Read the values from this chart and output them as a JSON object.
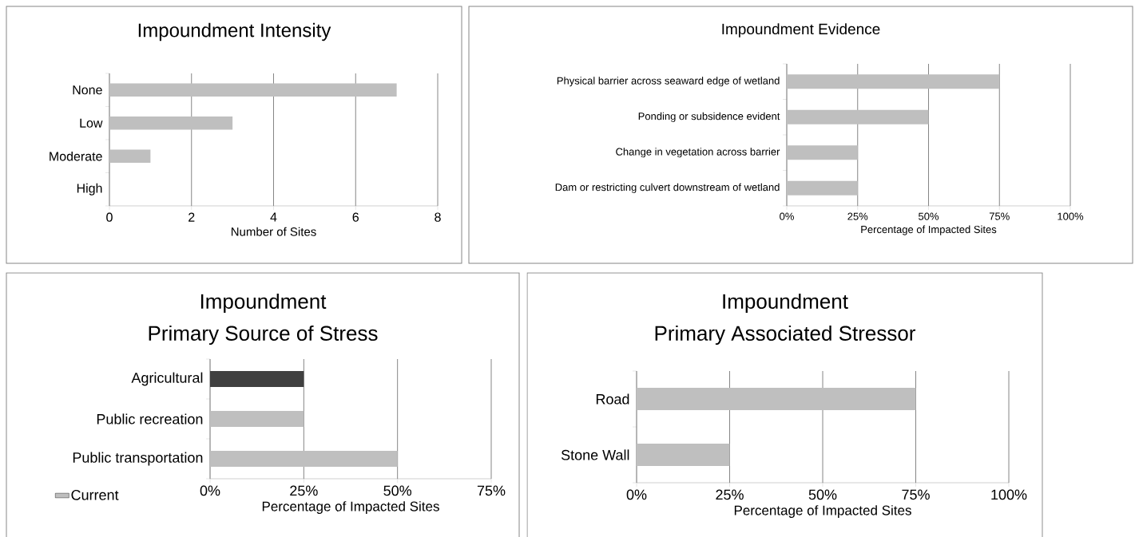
{
  "chart_data": [
    {
      "type": "bar",
      "orientation": "horizontal",
      "title": "Impoundment Intensity",
      "xlabel": "Number of Sites",
      "categories": [
        "None",
        "Low",
        "Moderate",
        "High"
      ],
      "series": [
        {
          "color": "#bfbfbf",
          "values": [
            7,
            3,
            1,
            0
          ]
        }
      ],
      "xlim": [
        0,
        8
      ],
      "xticks": [
        0,
        2,
        4,
        6,
        8
      ],
      "grid": "x"
    },
    {
      "type": "bar",
      "orientation": "horizontal",
      "title": "Impoundment Evidence",
      "xlabel": "Percentage of Impacted Sites",
      "categories": [
        "Physical barrier across seaward edge of wetland",
        "Ponding or subsidence evident",
        "Change in  vegetation across barrier",
        "Dam or restricting culvert downstream of wetland"
      ],
      "series": [
        {
          "color": "#bfbfbf",
          "values": [
            75,
            50,
            25,
            25
          ]
        }
      ],
      "xlim": [
        0,
        100
      ],
      "xticks": [
        {
          "value": 0,
          "label": "0%"
        },
        {
          "value": 25,
          "label": "25%"
        },
        {
          "value": 50,
          "label": "50%"
        },
        {
          "value": 75,
          "label": "75%"
        },
        {
          "value": 100,
          "label": "100%"
        }
      ],
      "grid": "x"
    },
    {
      "type": "bar",
      "orientation": "horizontal",
      "title": "Impoundment",
      "subtitle": "Primary Source of Stress",
      "xlabel": "Percentage of Impacted Sites",
      "categories": [
        "Agricultural",
        "Public recreation",
        "Public transportation"
      ],
      "series": [
        {
          "name": "Current",
          "color": "#bfbfbf",
          "colors": [
            "#404040",
            "#bfbfbf",
            "#bfbfbf"
          ],
          "values": [
            25,
            25,
            50
          ]
        }
      ],
      "xlim": [
        0,
        75
      ],
      "xticks": [
        {
          "value": 0,
          "label": "0%"
        },
        {
          "value": 25,
          "label": "25%"
        },
        {
          "value": 50,
          "label": "50%"
        },
        {
          "value": 75,
          "label": "75%"
        }
      ],
      "grid": "x",
      "legend": "bottom left"
    },
    {
      "type": "bar",
      "orientation": "horizontal",
      "title": "Impoundment",
      "subtitle": "Primary Associated Stressor",
      "xlabel": "Percentage of Impacted Sites",
      "categories": [
        "Road",
        "Stone Wall"
      ],
      "series": [
        {
          "color": "#bfbfbf",
          "values": [
            75,
            25
          ]
        }
      ],
      "xlim": [
        0,
        100
      ],
      "xticks": [
        {
          "value": 0,
          "label": "0%"
        },
        {
          "value": 25,
          "label": "25%"
        },
        {
          "value": 50,
          "label": "50%"
        },
        {
          "value": 75,
          "label": "75%"
        },
        {
          "value": 100,
          "label": "100%"
        }
      ],
      "grid": "x"
    }
  ]
}
